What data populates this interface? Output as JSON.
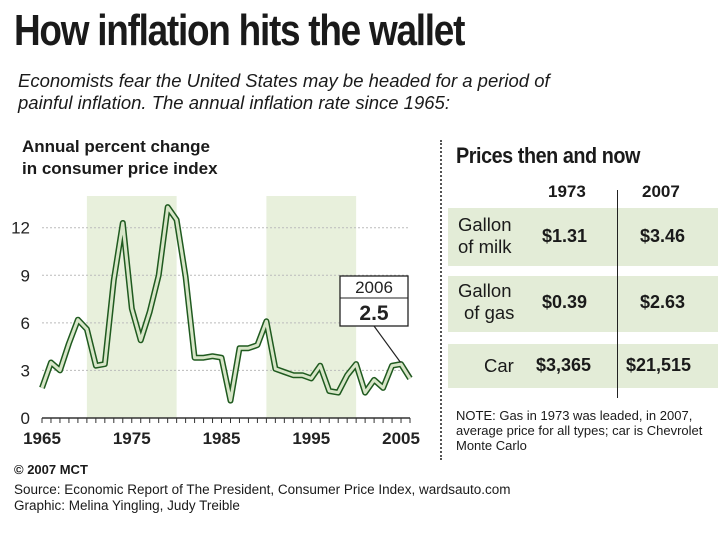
{
  "title": "How inflation hits the wallet",
  "subtitle": "Economists fear the United States may be headed for a period of painful inflation. The annual inflation rate since 1965:",
  "chart_data": {
    "type": "line",
    "title": "Annual percent change in consumer price index",
    "title_lines": [
      "Annual percent change",
      "in consumer price index"
    ],
    "xlabel": "",
    "ylabel": "",
    "x": [
      1965,
      1966,
      1967,
      1968,
      1969,
      1970,
      1971,
      1972,
      1973,
      1974,
      1975,
      1976,
      1977,
      1978,
      1979,
      1980,
      1981,
      1982,
      1983,
      1984,
      1985,
      1986,
      1987,
      1988,
      1989,
      1990,
      1991,
      1992,
      1993,
      1994,
      1995,
      1996,
      1997,
      1998,
      1999,
      2000,
      2001,
      2002,
      2003,
      2004,
      2005,
      2006
    ],
    "values": [
      1.9,
      3.5,
      3.0,
      4.7,
      6.2,
      5.6,
      3.3,
      3.4,
      8.7,
      12.3,
      6.9,
      4.9,
      6.7,
      9.0,
      13.3,
      12.5,
      8.9,
      3.8,
      3.8,
      3.9,
      3.8,
      1.1,
      4.4,
      4.4,
      4.6,
      6.1,
      3.1,
      2.9,
      2.7,
      2.7,
      2.5,
      3.3,
      1.7,
      1.6,
      2.7,
      3.4,
      1.6,
      2.4,
      1.9,
      3.3,
      3.4,
      2.5
    ],
    "xlim": [
      1965,
      2006
    ],
    "ylim": [
      0,
      14
    ],
    "y_ticks": [
      0,
      3,
      6,
      9,
      12
    ],
    "y_tick_labels": [
      "0",
      "3",
      "6",
      "9",
      "12"
    ],
    "x_ticks": [
      1965,
      1975,
      1985,
      1995,
      2005
    ],
    "x_tick_labels": [
      "1965",
      "1975",
      "1985",
      "1995",
      "2005"
    ],
    "grid": true,
    "line_color": "#1f5a1f",
    "line_fill_color": "#d8e6c8",
    "band_color": "#e8f0dc",
    "annotation": {
      "year": 2006,
      "year_label": "2006",
      "value": 2.5,
      "value_label": "2.5"
    }
  },
  "prices": {
    "title": "Prices then and now",
    "col1": "1973",
    "col2": "2007",
    "rows": [
      {
        "label_line1": "Gallon",
        "label_line2": "of milk",
        "v1973": "$1.31",
        "v2007": "$3.46"
      },
      {
        "label_line1": "Gallon",
        "label_line2": "of gas",
        "v1973": "$0.39",
        "v2007": "$2.63"
      },
      {
        "label_line1": "Car",
        "label_line2": "",
        "v1973": "$3,365",
        "v2007": "$21,515"
      }
    ],
    "row_color": "#e3ecd7",
    "note": "NOTE: Gas in 1973 was leaded, in 2007, average price for all types; car is Chevrolet Monte Carlo"
  },
  "footer": {
    "credit": "© 2007 MCT",
    "source": "Source: Economic Report of The President, Consumer Price Index, wardsauto.com",
    "graphic": "Graphic: Melina Yingling, Judy Treible"
  }
}
